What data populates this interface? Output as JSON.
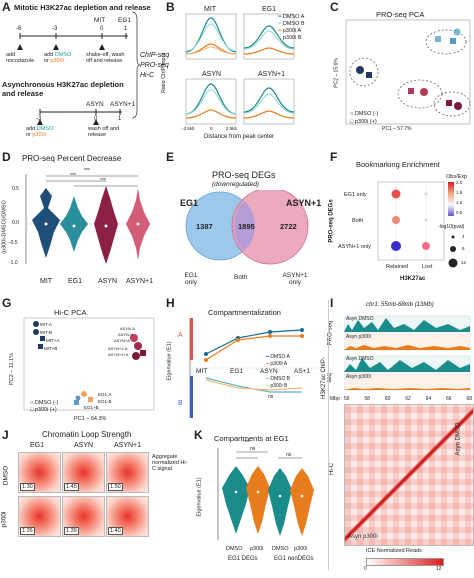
{
  "panel_labels": [
    "A",
    "B",
    "C",
    "D",
    "E",
    "F",
    "G",
    "H",
    "I",
    "J",
    "K"
  ],
  "A": {
    "mitotic_title": "Mitotic H3K27ac depletion and release",
    "async_title": "Asynchronous H3K27ac depletion and release",
    "timeline1_ticks": [
      "-6",
      "-3",
      "0",
      "1"
    ],
    "timeline1_marks": [
      "MIT",
      "EG1"
    ],
    "add_nocodazole": "add nocodazole",
    "add_prefix": "add",
    "dmso": "DMSO",
    "or": "or",
    "p300i": "p300i",
    "shakeoff": "shake-off, wash off and release",
    "timeline2_ticks": [
      "-3",
      "0",
      "1"
    ],
    "timeline2_marks": [
      "ASYN",
      "ASYN+1"
    ],
    "washoff": "wash off and release",
    "assays": [
      "ChIP-seq",
      "PRO-seq",
      "Hi-C"
    ]
  },
  "B": {
    "subplots": [
      "MIT",
      "EG1",
      "ASYN",
      "ASYN+1"
    ],
    "legend": [
      "DMSO A",
      "DMSO B",
      "p300i A",
      "p300i B"
    ],
    "ylabel": "Ratio ChIP/Input",
    "xlabel": "Distance from peak center",
    "xticks": [
      "-2.5kb",
      "0",
      "2.5kb"
    ],
    "yticks_top": [
      "2",
      "4",
      "6"
    ],
    "yticks_bottom": [
      "2",
      "4"
    ],
    "colors": {
      "dmso_a": "#1a8c8c",
      "dmso_b": "#8fd6d6",
      "p300i_a": "#e87d1e",
      "p300i_b": "#f5b878"
    }
  },
  "C": {
    "title": "PRO-seq PCA",
    "xlabel": "PC1 – 57.7%",
    "ylabel": "PC2 – 15.6%",
    "legend": [
      "DMSO (-)",
      "p300i (+)"
    ],
    "points": [
      "EG1-A",
      "EG1-B",
      "MIT-A",
      "MIT-B",
      "ASYN-A",
      "ASYN-B",
      "ASYN+1-A",
      "ASYN+1-B"
    ]
  },
  "D": {
    "title": "PRO-seq Percent Decrease",
    "ylabel": "(p300i-DMSO)/DMSO",
    "yticks": [
      "0.5",
      "0.0",
      "-0.5",
      "-1.0"
    ],
    "categories": [
      "MIT",
      "EG1",
      "ASYN",
      "ASYN+1"
    ],
    "sig": "***"
  },
  "E": {
    "title": "PRO-seq DEGs",
    "subtitle": "(downregulated)",
    "left_set": "EG1",
    "right_set": "ASYN+1",
    "left_only": "1387",
    "both": "1895",
    "right_only": "2722",
    "callouts": [
      "EG1 only",
      "Both",
      "ASYN+1 only"
    ]
  },
  "F": {
    "title": "Bookmarking Enrichment",
    "rows": [
      "EG1 only",
      "Both",
      "ASYN+1 only"
    ],
    "cols": [
      "Retained",
      "Lost"
    ],
    "group_y": "PRO-seq DEGs",
    "group_x": "H3K27ac",
    "legend_title1": "Obs/Exp",
    "legend_ticks1": [
      "2.0",
      "1.5",
      "1.0",
      "0.5"
    ],
    "legend_title2": "-log10(pval)",
    "legend_sizes": [
      "4",
      "8",
      "12"
    ]
  },
  "G": {
    "title": "Hi-C PCA",
    "xlabel": "PC1 – 64.3%",
    "ylabel": "PC2 – 11.1%",
    "legend": [
      "DMSO (-)",
      "p300i (+)"
    ],
    "labels": [
      "MIT-A",
      "MIT-B",
      "MIT+A",
      "MIT+B",
      "ASYN-A",
      "ASYN-B",
      "ASYN+A",
      "ASYN+B",
      "ASYN+1-A",
      "ASYN+1-B",
      "ASYN+1+A",
      "ASYN+1+B",
      "EG1-A",
      "EG1-B",
      "EG1+A",
      "EG1+B"
    ],
    "xticks": [
      "-100",
      "0",
      "100"
    ],
    "yticks": [
      "50",
      "0",
      "-50"
    ]
  },
  "H": {
    "title": "Compartmentalization",
    "ylabel": "Eigenvalue (E1)",
    "categories": [
      "MIT",
      "EG1",
      "ASYN",
      "AS+1"
    ],
    "legend_top": [
      "DMSO A",
      "p300i A"
    ],
    "legend_bottom": [
      "DMSO B",
      "p300i B"
    ],
    "A_label": "A",
    "B_label": "B",
    "ns": "ns"
  },
  "I": {
    "region": "chr1: 55mb-68mb (13Mb)",
    "tracks": [
      "Asyn DMSO",
      "Asyn p300i",
      "Asyn DMSO",
      "Asyn p300i"
    ],
    "track_groups": [
      "PRO-seq",
      "H3K27ac ChIP-seq"
    ],
    "mbp_label": "Mbp",
    "mbp_ticks": [
      "56",
      "58",
      "60",
      "62",
      "64",
      "66",
      "68"
    ],
    "hic_label": "Hi-C",
    "top_label": "Asyn DMSO",
    "bottom_label": "Asyn p300i",
    "colorbar_title": "ICE Normalized Reads",
    "colorbar_ticks": [
      "0",
      "12"
    ]
  },
  "J": {
    "title": "Chromatin Loop Strength",
    "cols": [
      "EG1",
      "ASYN",
      "ASYN+1"
    ],
    "rows": [
      "DMSO",
      "p300i"
    ],
    "values": [
      [
        "1.30",
        "1.45",
        "1.50"
      ],
      [
        "1.26",
        "1.39",
        "1.40"
      ]
    ],
    "side_note": "Aggregate normalized Hi-C signal"
  },
  "K": {
    "title": "Compartments at EG1",
    "ylabel": "Eigenvalue (E1)",
    "xticks": [
      "DMSO",
      "p300i",
      "DMSO",
      "p300i"
    ],
    "groups": [
      "EG1 DEGs",
      "EG1 nonDEGs"
    ],
    "sig": [
      "ns",
      "ns",
      "***"
    ]
  }
}
